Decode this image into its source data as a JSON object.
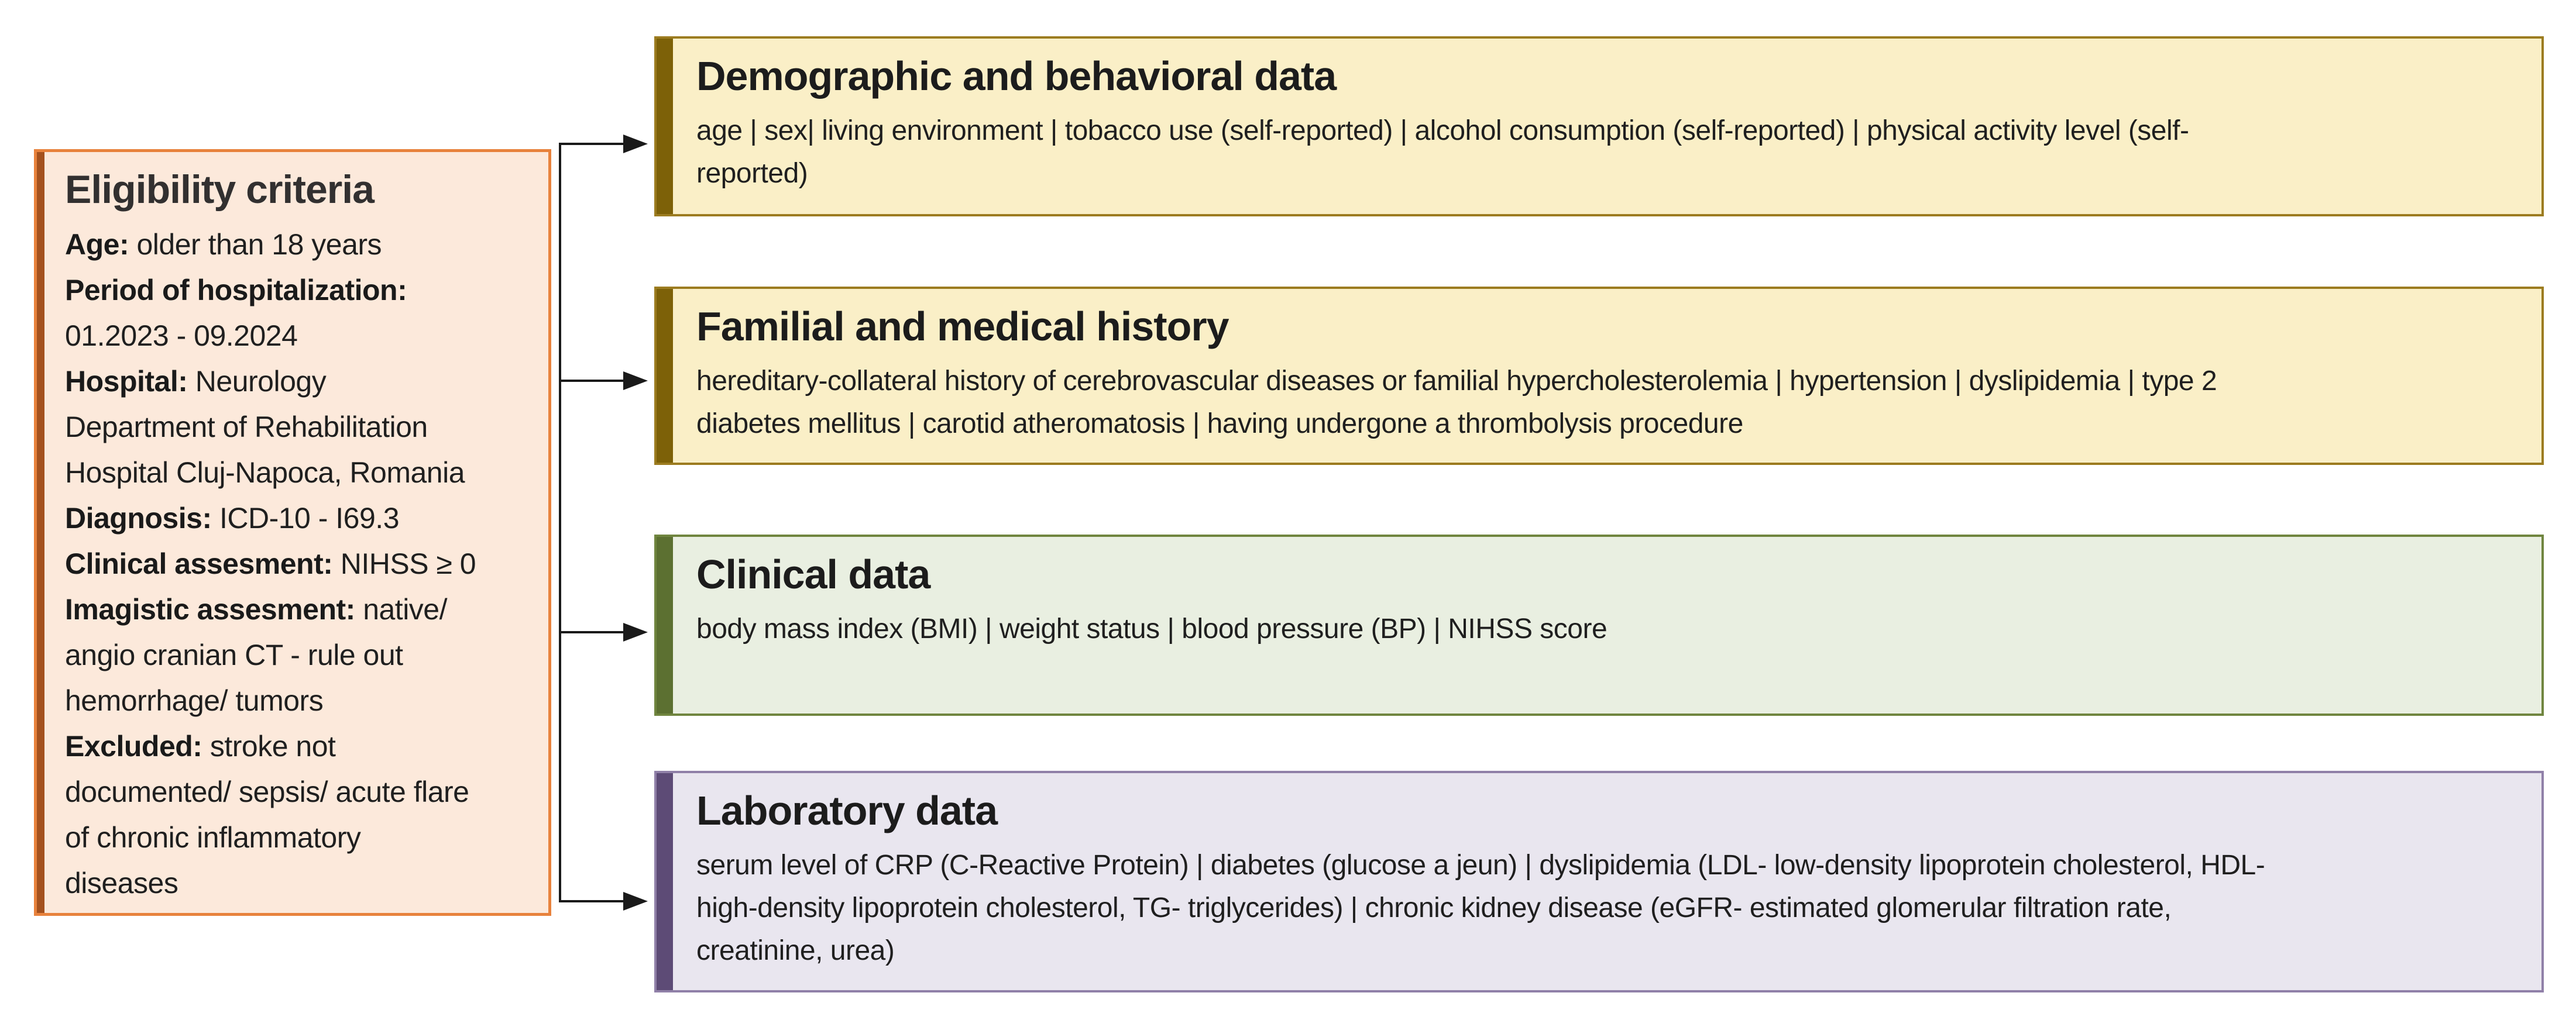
{
  "figure": {
    "type": "study-design-flow-diagram"
  },
  "eligibility": {
    "title": "Eligibility criteria",
    "lines": [
      {
        "label": "Age:",
        "text": " older than 18 years"
      },
      {
        "label": "Period of hospitalization:",
        "text": ""
      },
      {
        "label": "",
        "text": "01.2023 - 09.2024"
      },
      {
        "label": "Hospital:",
        "text": " Neurology"
      },
      {
        "label": "",
        "text": "Department of Rehabilitation"
      },
      {
        "label": "",
        "text": "Hospital Cluj-Napoca, Romania"
      },
      {
        "label": "Diagnosis:",
        "text": " ICD-10 - I69.3"
      },
      {
        "label": "Clinical assesment:",
        "text": " NIHSS ≥ 0"
      },
      {
        "label": "Imagistic assesment:",
        "text": " native/"
      },
      {
        "label": "",
        "text": "angio cranian CT - rule out"
      },
      {
        "label": "",
        "text": "hemorrhage/ tumors"
      },
      {
        "label": "Excluded:",
        "text": " stroke not"
      },
      {
        "label": "",
        "text": "documented/ sepsis/ acute flare"
      },
      {
        "label": "",
        "text": "of chronic inflammatory"
      },
      {
        "label": "",
        "text": "diseases"
      }
    ],
    "colors": {
      "fill": "#fce9db",
      "border": "#e8823c",
      "bar": "#a4511e"
    }
  },
  "boxes": [
    {
      "title": "Demographic and behavioral data",
      "lines": [
        "age | sex| living environment | tobacco use (self-reported) | alcohol consumption (self-reported) | physical activity level (self-",
        "reported)"
      ],
      "colors": {
        "fill": "#faefc7",
        "border": "#9c7c20",
        "bar": "#7d6108"
      }
    },
    {
      "title": "Familial and medical history",
      "lines": [
        "hereditary-collateral history of cerebrovascular diseases or familial hypercholesterolemia | hypertension | dyslipidemia | type 2",
        "diabetes mellitus | carotid atheromatosis | having undergone a thrombolysis procedure"
      ],
      "colors": {
        "fill": "#faefc7",
        "border": "#9c7c20",
        "bar": "#7d6108"
      }
    },
    {
      "title": "Clinical data",
      "lines": [
        "body mass index (BMI) | weight status | blood pressure (BP) | NIHSS score"
      ],
      "colors": {
        "fill": "#e9efe1",
        "border": "#70853f",
        "bar": "#5c7031"
      }
    },
    {
      "title": "Laboratory data",
      "lines": [
        "serum level of CRP (C-Reactive Protein) | diabetes (glucose a jeun) | dyslipidemia (LDL- low-density lipoprotein cholesterol, HDL-",
        "high-density lipoprotein cholesterol, TG- triglycerides) | chronic kidney disease (eGFR- estimated glomerular filtration rate,",
        "creatinine, urea)"
      ],
      "colors": {
        "fill": "#e9e6ef",
        "border": "#9080a8",
        "bar": "#5d4b76"
      }
    }
  ],
  "connector": {
    "color": "#1a1a1a",
    "arrow_count": 4
  }
}
